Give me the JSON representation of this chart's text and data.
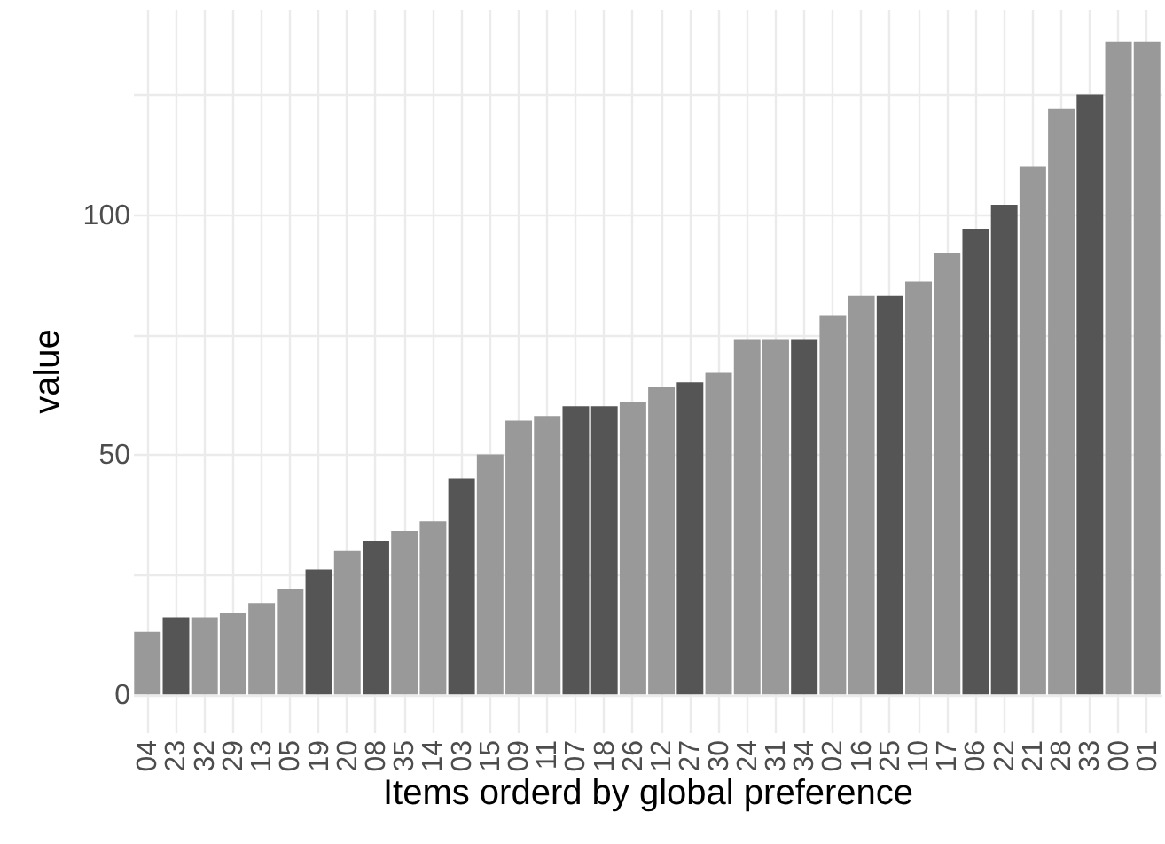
{
  "chart_data": {
    "type": "bar",
    "xlabel": "Items orderd by global preference",
    "ylabel": "value",
    "categories": [
      "04",
      "23",
      "32",
      "29",
      "13",
      "05",
      "19",
      "20",
      "08",
      "35",
      "14",
      "03",
      "15",
      "09",
      "11",
      "07",
      "18",
      "26",
      "12",
      "27",
      "30",
      "24",
      "31",
      "34",
      "02",
      "16",
      "25",
      "10",
      "17",
      "06",
      "22",
      "21",
      "28",
      "33",
      "00",
      "01"
    ],
    "values": [
      13,
      16,
      16,
      17,
      19,
      22,
      26,
      30,
      32,
      34,
      36,
      45,
      50,
      57,
      58,
      60,
      60,
      61,
      64,
      65,
      67,
      74,
      74,
      74,
      79,
      83,
      83,
      86,
      92,
      97,
      102,
      110,
      122,
      125,
      136,
      136
    ],
    "colors": [
      "#999999",
      "#555555",
      "#999999",
      "#999999",
      "#999999",
      "#999999",
      "#555555",
      "#999999",
      "#555555",
      "#999999",
      "#999999",
      "#555555",
      "#999999",
      "#999999",
      "#999999",
      "#555555",
      "#555555",
      "#999999",
      "#999999",
      "#555555",
      "#999999",
      "#999999",
      "#999999",
      "#555555",
      "#999999",
      "#999999",
      "#555555",
      "#999999",
      "#999999",
      "#555555",
      "#555555",
      "#999999",
      "#999999",
      "#555555",
      "#999999",
      "#999999"
    ],
    "ylim": [
      -7.9,
      142.8
    ],
    "yticks": [
      0,
      {
        "value": 25,
        "label": null
      },
      50,
      {
        "value": 75,
        "label": null
      },
      100,
      {
        "value": 125,
        "label": null
      }
    ],
    "grid": true
  }
}
